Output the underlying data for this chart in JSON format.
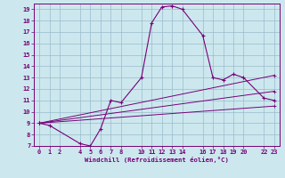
{
  "xlabel": "Windchill (Refroidissement éolien,°C)",
  "bg_color": "#cce8ee",
  "grid_color": "#99bbcc",
  "line_color": "#770077",
  "spine_color": "#770077",
  "marker": "+",
  "xlim": [
    -0.5,
    23.5
  ],
  "ylim": [
    7,
    19.5
  ],
  "xticks": [
    0,
    1,
    2,
    4,
    5,
    6,
    7,
    8,
    10,
    11,
    12,
    13,
    14,
    16,
    17,
    18,
    19,
    20,
    22,
    23
  ],
  "yticks": [
    7,
    8,
    9,
    10,
    11,
    12,
    13,
    14,
    15,
    16,
    17,
    18,
    19
  ],
  "tick_fontsize": 5.0,
  "xlabel_fontsize": 5.2,
  "series": [
    [
      [
        0,
        9.0
      ],
      [
        1,
        8.8
      ],
      [
        4,
        7.2
      ],
      [
        5,
        7.0
      ],
      [
        6,
        8.5
      ],
      [
        7,
        11.0
      ],
      [
        8,
        10.8
      ],
      [
        10,
        13.0
      ],
      [
        11,
        17.8
      ],
      [
        12,
        19.2
      ],
      [
        13,
        19.3
      ],
      [
        14,
        19.0
      ],
      [
        16,
        16.7
      ],
      [
        17,
        13.0
      ],
      [
        18,
        12.8
      ],
      [
        19,
        13.3
      ],
      [
        20,
        13.0
      ],
      [
        22,
        11.2
      ],
      [
        23,
        11.0
      ]
    ],
    [
      [
        0,
        9.0
      ],
      [
        23,
        13.2
      ]
    ],
    [
      [
        0,
        9.0
      ],
      [
        23,
        11.8
      ]
    ],
    [
      [
        0,
        9.0
      ],
      [
        23,
        10.5
      ]
    ]
  ]
}
